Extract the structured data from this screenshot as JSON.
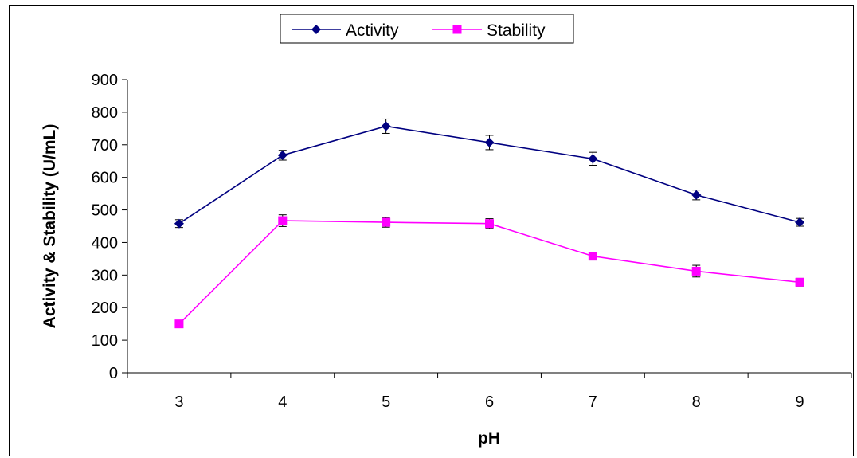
{
  "chart_data": {
    "type": "line",
    "xlabel": "pH",
    "ylabel": "Activity & Stability (U/mL)",
    "categories": [
      "3",
      "4",
      "5",
      "6",
      "7",
      "8",
      "9"
    ],
    "ylim": [
      0,
      900
    ],
    "yticks": [
      "0",
      "100",
      "200",
      "300",
      "400",
      "500",
      "600",
      "700",
      "800",
      "900"
    ],
    "grid": false,
    "legend_position": "top-center",
    "series": [
      {
        "name": "Activity",
        "color": "#000080",
        "marker": "diamond",
        "values": [
          458,
          668,
          757,
          707,
          657,
          546,
          462
        ],
        "errors": [
          12,
          15,
          22,
          22,
          20,
          15,
          12
        ]
      },
      {
        "name": "Stability",
        "color": "#ff00ff",
        "marker": "square",
        "values": [
          150,
          467,
          462,
          458,
          358,
          312,
          278
        ],
        "errors": [
          8,
          18,
          15,
          15,
          12,
          18,
          12
        ]
      }
    ]
  }
}
